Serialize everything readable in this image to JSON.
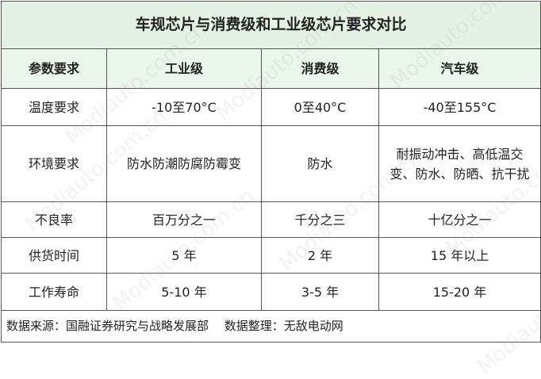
{
  "table": {
    "title": "车规芯片与消费级和工业级芯片要求对比",
    "header": [
      "参数要求",
      "工业级",
      "消费级",
      "汽车级"
    ],
    "rows": [
      [
        "温度要求",
        "-10至70°C",
        "0至40°C",
        "-40至155°C"
      ],
      [
        "环境要求",
        "防水防潮防腐防霉变",
        "防水",
        "耐振动冲击、高低温交变、防水、防晒、抗干扰"
      ],
      [
        "不良率",
        "百万分之一",
        "千分之三",
        "十亿分之一"
      ],
      [
        "供货时间",
        "5 年",
        "2 年",
        "15 年以上"
      ],
      [
        "工作寿命",
        "5-10 年",
        "3-5 年",
        "15-20 年"
      ]
    ],
    "footer": "数据来源：国融证券研究与战略发展部　 数据整理：无敌电动网"
  },
  "watermark": "Modiauto.com.cn"
}
